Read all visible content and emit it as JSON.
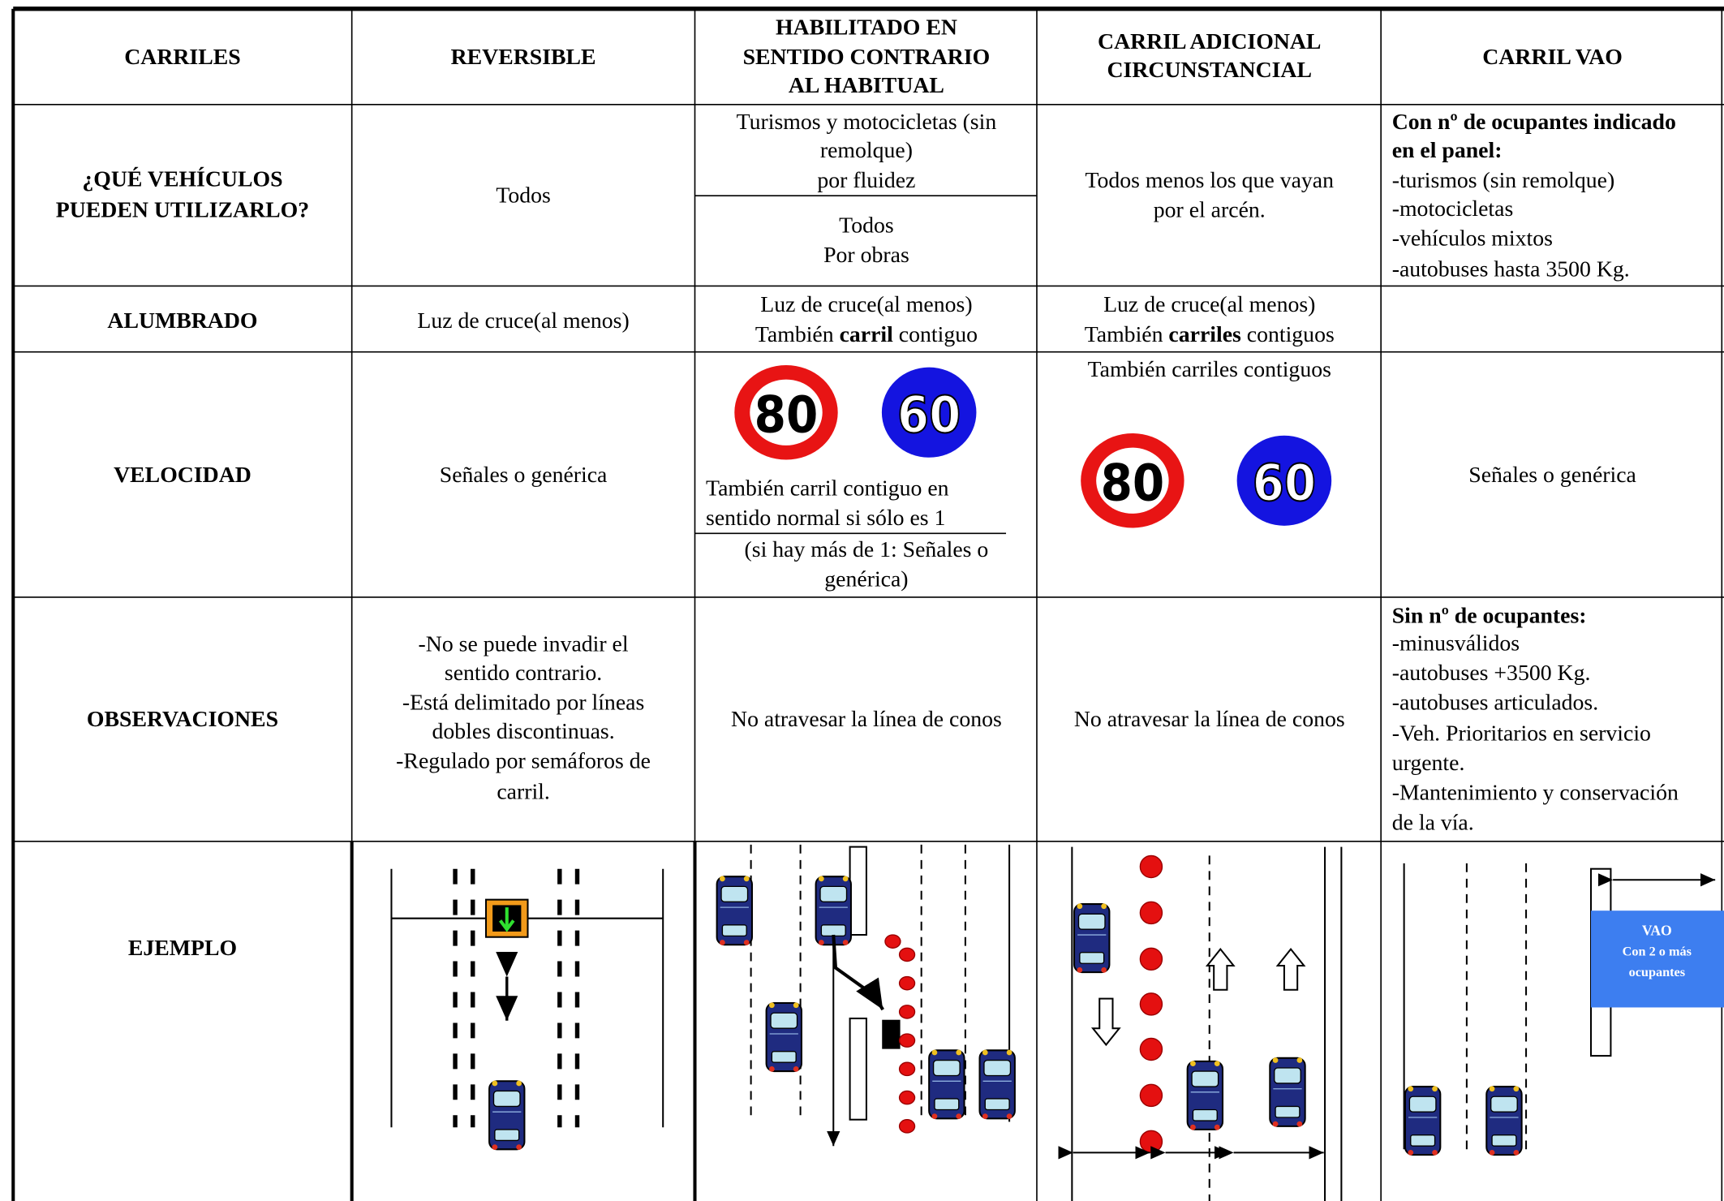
{
  "header": {
    "carriles": "CARRILES",
    "reversible": "REVERSIBLE",
    "habilitado": [
      "HABILITADO EN",
      "SENTIDO CONTRARIO",
      "AL HABITUAL"
    ],
    "adicional": [
      "CARRIL ADICIONAL",
      "CIRCUNSTANCIAL"
    ],
    "vao": "CARRIL VAO"
  },
  "rows": [
    {
      "label": [
        "¿QUÉ VEHÍCULOS",
        "PUEDEN UTILIZARLO?"
      ],
      "reversible": "Todos",
      "habilitado": {
        "fluidez": [
          "Turismos y motocicletas (sin",
          "remolque)",
          "por fluidez"
        ],
        "obras": [
          "Todos",
          "Por obras"
        ]
      },
      "adicional": [
        "Todos menos los que vayan",
        "por el arcén."
      ],
      "vao": {
        "heading": [
          "Con nº de ocupantes indicado",
          "en el panel:"
        ],
        "items": [
          "-turismos (sin remolque)",
          "-motocicletas",
          "-vehículos mixtos",
          "-autobuses hasta 3500 Kg."
        ]
      }
    },
    {
      "label": "ALUMBRADO",
      "reversible": "Luz de cruce(al menos)",
      "habilitado": {
        "line1": "Luz de cruce(al menos)",
        "line2": [
          "También ",
          "carril",
          " contiguo"
        ]
      },
      "adicional": {
        "line1": "Luz de cruce(al menos)",
        "line2": [
          "También ",
          "carriles",
          " contiguos"
        ]
      }
    },
    {
      "label": "VELOCIDAD",
      "reversible": "Señales o genérica",
      "habilitado": {
        "signs": [
          80,
          60
        ],
        "note": [
          "También carril contiguo en",
          "sentido normal si sólo es 1"
        ],
        "other": [
          "(si hay más de 1: Señales o",
          "genérica)"
        ]
      },
      "adicional": {
        "note": "También carriles contiguos",
        "signs": [
          80,
          60
        ]
      },
      "vao": "Señales o genérica"
    },
    {
      "label": "OBSERVACIONES",
      "reversible": [
        "-No se puede invadir el",
        "sentido contrario.",
        "-Está delimitado por líneas",
        "dobles discontinuas.",
        "-Regulado por semáforos de",
        "carril."
      ],
      "habilitado": "No atravesar la línea de conos",
      "adicional": "No atravesar la línea de conos",
      "vao": {
        "heading": "Sin nº de ocupantes:",
        "items": [
          "-minusválidos",
          "-autobuses +3500 Kg.",
          "-autobuses articulados.",
          "-Veh. Prioritarios en servicio",
          "urgente.",
          "-Mantenimiento y conservación",
          "de la vía."
        ]
      }
    },
    {
      "label": "EJEMPLO",
      "vao": {
        "sign_title": "VAO",
        "sign_text": [
          "Con 2 o más",
          "ocupantes"
        ]
      }
    }
  ]
}
